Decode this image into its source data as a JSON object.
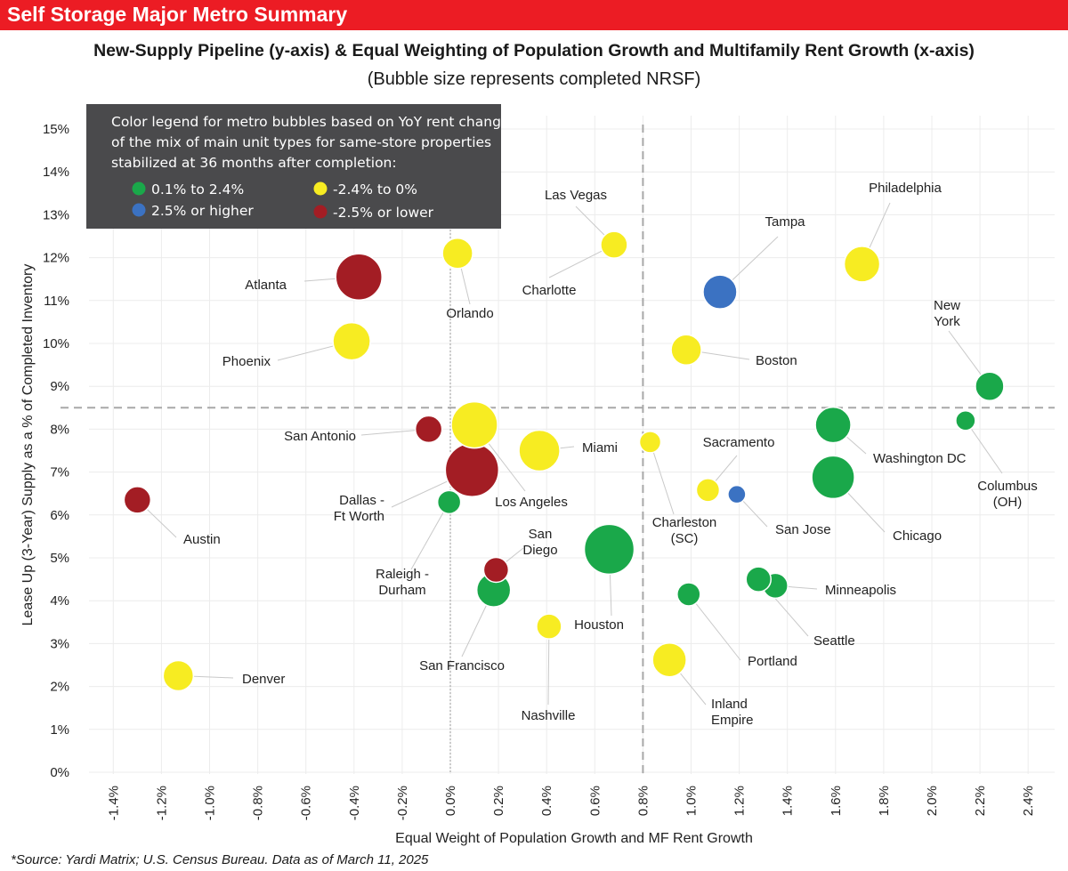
{
  "header": {
    "banner": "Self Storage Major Metro Summary"
  },
  "footer": {
    "source": "*Source: Yardi Matrix; U.S. Census Bureau. Data as of March 11, 2025"
  },
  "chart_data": {
    "type": "scatter",
    "title": "New-Supply Pipeline (y-axis) & Equal Weighting of Population Growth and Multifamily Rent Growth (x-axis)",
    "subtitle": "(Bubble size represents completed NRSF)",
    "xlabel": "Equal Weight of Population Growth and MF Rent Growth",
    "ylabel": "Lease Up (3-Year) Supply as a % of Completed Inventory",
    "xlim": [
      -1.5,
      2.5
    ],
    "ylim": [
      0,
      15.5
    ],
    "x_ticks": [
      -1.4,
      -1.2,
      -1.0,
      -0.8,
      -0.6,
      -0.4,
      -0.2,
      0.0,
      0.2,
      0.4,
      0.6,
      0.8,
      1.0,
      1.2,
      1.4,
      1.6,
      1.8,
      2.0,
      2.2,
      2.4
    ],
    "x_tick_labels": [
      "-1.4%",
      "-1.2%",
      "-1.0%",
      "-0.8%",
      "-0.6%",
      "-0.4%",
      "-0.2%",
      "0.0%",
      "0.2%",
      "0.4%",
      "0.6%",
      "0.8%",
      "1.0%",
      "1.2%",
      "1.4%",
      "1.6%",
      "1.8%",
      "2.0%",
      "2.2%",
      "2.4%"
    ],
    "y_ticks": [
      0,
      1,
      2,
      3,
      4,
      5,
      6,
      7,
      8,
      9,
      10,
      11,
      12,
      13,
      14,
      15
    ],
    "y_tick_labels": [
      "0%",
      "1%",
      "2%",
      "3%",
      "4%",
      "5%",
      "6%",
      "7%",
      "8%",
      "9%",
      "10%",
      "11%",
      "12%",
      "13%",
      "14%",
      "15%"
    ],
    "reference_lines": {
      "x": 0.8,
      "y": 8.5
    },
    "zero_line_x": 0.0,
    "grid": true,
    "colors": {
      "green": "#1aa84a",
      "blue": "#3b72c2",
      "yellow": "#f7ec22",
      "red": "#a31d24"
    },
    "legend": {
      "position": "top-left",
      "title_lines": [
        "Color legend for metro bubbles based on YoY rent change",
        "of the mix of main unit types for same-store properties",
        "stabilized at 36 months after completion:"
      ],
      "items": [
        {
          "label": "0.1% to 2.4%",
          "color": "green"
        },
        {
          "label": "2.5% or higher",
          "color": "blue"
        },
        {
          "label": "-2.4% to 0%",
          "color": "yellow"
        },
        {
          "label": "-2.5% or lower",
          "color": "red"
        }
      ]
    },
    "points": [
      {
        "name": "Atlanta",
        "x": -0.38,
        "y": 11.55,
        "size": 26,
        "color": "red"
      },
      {
        "name": "Orlando",
        "x": 0.03,
        "y": 12.1,
        "size": 17,
        "color": "yellow"
      },
      {
        "name": "Las Vegas",
        "x": 0.68,
        "y": 12.3,
        "size": 15,
        "color": "yellow"
      },
      {
        "name": "Charlotte",
        "x": 0.68,
        "y": 12.3,
        "size": 15,
        "color": "yellow"
      },
      {
        "name": "Philadelphia",
        "x": 1.71,
        "y": 11.85,
        "size": 20,
        "color": "yellow"
      },
      {
        "name": "Tampa",
        "x": 1.12,
        "y": 11.2,
        "size": 19,
        "color": "blue"
      },
      {
        "name": "Phoenix",
        "x": -0.41,
        "y": 10.05,
        "size": 21,
        "color": "yellow"
      },
      {
        "name": "Boston",
        "x": 0.98,
        "y": 9.85,
        "size": 17,
        "color": "yellow"
      },
      {
        "name": "New York",
        "x": 2.24,
        "y": 9.0,
        "size": 16,
        "color": "green"
      },
      {
        "name": "San Antonio",
        "x": -0.09,
        "y": 8.0,
        "size": 15,
        "color": "red"
      },
      {
        "name": "Los Angeles",
        "x": 0.1,
        "y": 8.1,
        "size": 26,
        "color": "yellow"
      },
      {
        "name": "Miami",
        "x": 0.37,
        "y": 7.5,
        "size": 23,
        "color": "yellow"
      },
      {
        "name": "Charleston (SC)",
        "x": 0.83,
        "y": 7.7,
        "size": 12,
        "color": "yellow"
      },
      {
        "name": "Washington DC",
        "x": 1.59,
        "y": 8.1,
        "size": 20,
        "color": "green"
      },
      {
        "name": "Columbus (OH)",
        "x": 2.14,
        "y": 8.2,
        "size": 11,
        "color": "green"
      },
      {
        "name": "Dallas - Ft Worth",
        "x": 0.09,
        "y": 7.05,
        "size": 30,
        "color": "red"
      },
      {
        "name": "Sacramento",
        "x": 1.07,
        "y": 6.58,
        "size": 13,
        "color": "yellow"
      },
      {
        "name": "San Jose",
        "x": 1.19,
        "y": 6.48,
        "size": 10,
        "color": "blue"
      },
      {
        "name": "Chicago",
        "x": 1.59,
        "y": 6.88,
        "size": 24,
        "color": "green"
      },
      {
        "name": "Austin",
        "x": -1.3,
        "y": 6.35,
        "size": 15,
        "color": "red"
      },
      {
        "name": "Raleigh - Durham",
        "x": -0.005,
        "y": 6.3,
        "size": 13,
        "color": "green"
      },
      {
        "name": "San Diego",
        "x": 0.19,
        "y": 4.72,
        "size": 14,
        "color": "red"
      },
      {
        "name": "Houston",
        "x": 0.66,
        "y": 5.2,
        "size": 28,
        "color": "green"
      },
      {
        "name": "San Francisco",
        "x": 0.18,
        "y": 4.25,
        "size": 19,
        "color": "green"
      },
      {
        "name": "Minneapolis",
        "x": 1.35,
        "y": 4.35,
        "size": 14,
        "color": "green"
      },
      {
        "name": "Seattle",
        "x": 1.28,
        "y": 4.5,
        "size": 14,
        "color": "green"
      },
      {
        "name": "Portland",
        "x": 0.99,
        "y": 4.15,
        "size": 13,
        "color": "green"
      },
      {
        "name": "Nashville",
        "x": 0.41,
        "y": 3.4,
        "size": 14,
        "color": "yellow"
      },
      {
        "name": "Inland Empire",
        "x": 0.91,
        "y": 2.62,
        "size": 19,
        "color": "yellow"
      },
      {
        "name": "Denver",
        "x": -1.13,
        "y": 2.25,
        "size": 17,
        "color": "yellow"
      }
    ]
  }
}
